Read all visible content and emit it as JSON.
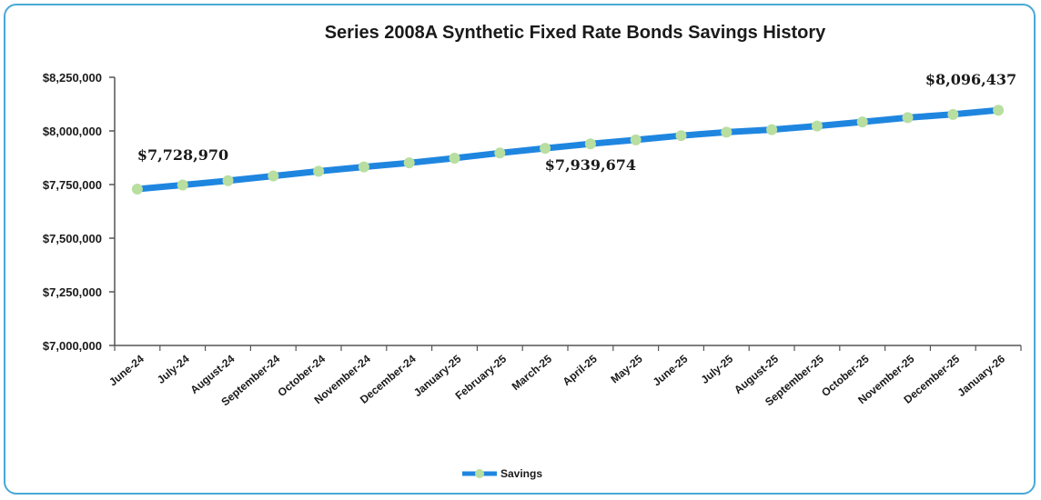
{
  "chart_data": {
    "type": "line",
    "title": "Series 2008A Synthetic Fixed Rate Bonds Savings History",
    "xlabel": "",
    "ylabel": "",
    "categories": [
      "June-24",
      "July-24",
      "August-24",
      "September-24",
      "October-24",
      "November-24",
      "December-24",
      "January-25",
      "February-25",
      "March-25",
      "April-25",
      "May-25",
      "June-25",
      "July-25",
      "August-25",
      "September-25",
      "October-25",
      "November-25",
      "December-25",
      "January-26"
    ],
    "series": [
      {
        "name": "Savings",
        "values": [
          7728970,
          7748000,
          7768000,
          7790000,
          7812000,
          7832000,
          7851000,
          7873000,
          7897000,
          7919000,
          7939674,
          7958000,
          7978000,
          7994000,
          8006000,
          8023000,
          8042000,
          8062000,
          8077000,
          8096437
        ]
      }
    ],
    "ylim": [
      7000000,
      8250000
    ],
    "yticks": [
      "$7,000,000",
      "$7,250,000",
      "$7,500,000",
      "$7,750,000",
      "$8,000,000",
      "$8,250,000"
    ],
    "ytick_values": [
      7000000,
      7250000,
      7500000,
      7750000,
      8000000,
      8250000
    ],
    "data_labels": [
      {
        "index": 0,
        "text": "$7,728,970"
      },
      {
        "index": 10,
        "text": "$7,939,674"
      },
      {
        "index": 19,
        "text": "$8,096,437"
      }
    ],
    "grid": false,
    "legend": "bottom",
    "colors": {
      "line": "#1f86e0",
      "marker": "#b8dea0",
      "axis": "#555555",
      "frame": "#48a9d6"
    }
  }
}
